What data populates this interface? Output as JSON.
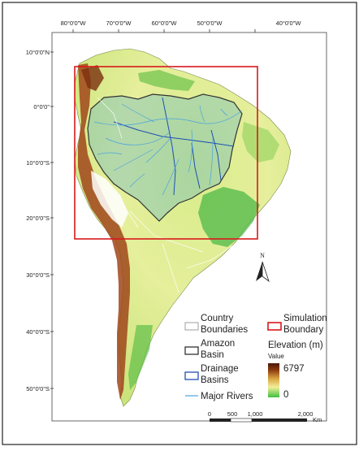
{
  "map": {
    "lon_labels": [
      "80°0'0\"W",
      "70°0'0\"W",
      "60°0'0\"W",
      "50°0'0\"W",
      "40°0'0\"W"
    ],
    "lat_labels": [
      "10°0'0\"N",
      "0°0'0\"",
      "10°0'0\"S",
      "20°0'0\"S",
      "30°0'0\"S",
      "40°0'0\"S",
      "50°0'0\"S"
    ],
    "north_label": "N",
    "colors": {
      "simulation_boundary": "#d7191c",
      "amazon_basin": "#333333",
      "drainage_basins": "#1f4fb4",
      "major_rivers": "#4aa3df",
      "country_boundaries": "#ffffff",
      "elevation_high": "#6b2a0c",
      "elevation_low": "#3fbf3f"
    }
  },
  "legend": {
    "country_boundaries": "Country Boundaries",
    "country_line1": "Country",
    "country_line2": "Boundaries",
    "amazon_line1": "Amazon",
    "amazon_line2": "Basin",
    "drainage_line1": "Drainage",
    "drainage_line2": "Basins",
    "major_rivers": "Major Rivers",
    "simulation_line1": "Simulation",
    "simulation_line2": "Boundary",
    "elevation_title": "Elevation (m)",
    "value_label": "Value",
    "elevation_max": "6797",
    "elevation_min": "0"
  },
  "scalebar": {
    "labels": [
      "0",
      "500",
      "1,000",
      "2,000"
    ],
    "unit": "Km"
  }
}
